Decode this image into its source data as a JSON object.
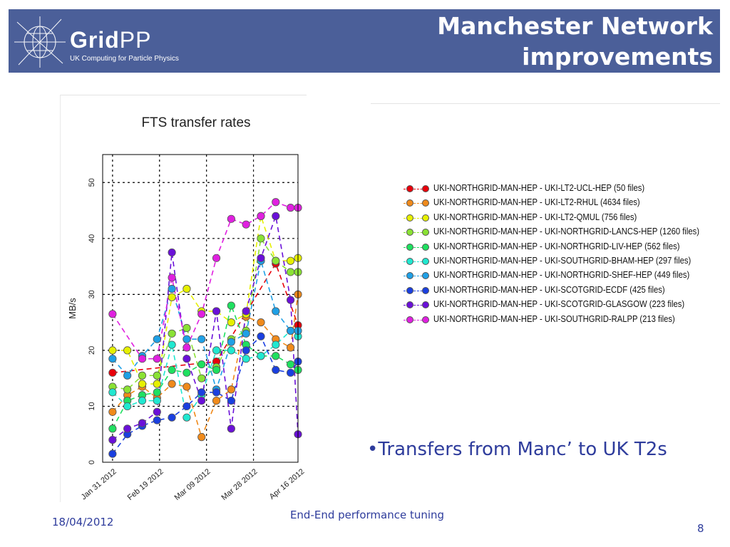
{
  "header": {
    "title_line1": "Manchester Network",
    "title_line2": "improvements",
    "logo": {
      "name": "GridPP",
      "name_grid": "Grid",
      "name_pp": "PP",
      "tagline": "UK Computing for Particle Physics"
    }
  },
  "colors": {
    "header_bg": "#4b5f99",
    "body_text": "#2e3c9c"
  },
  "chart_data": {
    "type": "line",
    "title": "FTS transfer rates",
    "ylabel": "MB/s",
    "xlabel": "",
    "x_ticks": [
      "Jan 31 2012",
      "Feb 19 2012",
      "Mar 09 2012",
      "Mar 28 2012",
      "Apr 16 2012"
    ],
    "y_ticks": [
      "0",
      "10",
      "20",
      "30",
      "40",
      "50"
    ],
    "ylim": [
      0,
      55
    ],
    "x_range_days": [
      -4,
      75
    ],
    "grid": true,
    "line_style": "dashed",
    "series": [
      {
        "name": "UKI-NORTHGRID-MAN-HEP - UKI-LT2-UCL-HEP  (50 files)",
        "color": "#e8000b",
        "points": [
          [
            0,
            16
          ],
          [
            42,
            18
          ],
          [
            66,
            35.5
          ],
          [
            75,
            24.5
          ]
        ]
      },
      {
        "name": "UKI-NORTHGRID-MAN-HEP - UKI-LT2-RHUL  (4634 files)",
        "color": "#f08a1b",
        "points": [
          [
            0,
            9
          ],
          [
            6,
            12
          ],
          [
            12,
            13.5
          ],
          [
            18,
            11.5
          ],
          [
            24,
            14
          ],
          [
            30,
            13.5
          ],
          [
            36,
            4.5
          ],
          [
            42,
            11
          ],
          [
            48,
            13
          ],
          [
            54,
            26
          ],
          [
            60,
            25
          ],
          [
            66,
            22
          ],
          [
            72,
            20.5
          ],
          [
            75,
            30
          ]
        ]
      },
      {
        "name": "UKI-NORTHGRID-MAN-HEP - UKI-LT2-QMUL  (756 files)",
        "color": "#e6f000",
        "points": [
          [
            0,
            20
          ],
          [
            6,
            20
          ],
          [
            12,
            14
          ],
          [
            18,
            14
          ],
          [
            24,
            29.5
          ],
          [
            30,
            31
          ],
          [
            36,
            27
          ],
          [
            42,
            27
          ],
          [
            48,
            25
          ],
          [
            54,
            26.5
          ],
          [
            60,
            44
          ],
          [
            66,
            36
          ],
          [
            72,
            36
          ],
          [
            75,
            36.5
          ]
        ]
      },
      {
        "name": "UKI-NORTHGRID-MAN-HEP - UKI-NORTHGRID-LANCS-HEP  (1260 files)",
        "color": "#8ae234",
        "points": [
          [
            0,
            13.5
          ],
          [
            6,
            13
          ],
          [
            12,
            15.5
          ],
          [
            18,
            15.5
          ],
          [
            24,
            23
          ],
          [
            30,
            24
          ],
          [
            36,
            15
          ],
          [
            42,
            17
          ],
          [
            48,
            22
          ],
          [
            54,
            23.5
          ],
          [
            60,
            40
          ],
          [
            66,
            36
          ],
          [
            72,
            34
          ],
          [
            75,
            34
          ]
        ]
      },
      {
        "name": "UKI-NORTHGRID-MAN-HEP - UKI-NORTHGRID-LIV-HEP  (562 files)",
        "color": "#1fe060",
        "points": [
          [
            0,
            6
          ],
          [
            6,
            11
          ],
          [
            12,
            12
          ],
          [
            18,
            12.5
          ],
          [
            24,
            16.5
          ],
          [
            30,
            16
          ],
          [
            36,
            17.5
          ],
          [
            42,
            16.5
          ],
          [
            48,
            28
          ],
          [
            54,
            21
          ],
          [
            60,
            19
          ],
          [
            66,
            19
          ],
          [
            72,
            17.5
          ],
          [
            75,
            16.5
          ]
        ]
      },
      {
        "name": "UKI-NORTHGRID-MAN-HEP - UKI-SOUTHGRID-BHAM-HEP  (297 files)",
        "color": "#20e8d0",
        "points": [
          [
            0,
            12.5
          ],
          [
            6,
            10
          ],
          [
            12,
            11
          ],
          [
            18,
            11
          ],
          [
            24,
            21
          ],
          [
            30,
            8
          ],
          [
            36,
            12
          ],
          [
            42,
            20
          ],
          [
            48,
            20
          ],
          [
            54,
            18.5
          ],
          [
            60,
            19
          ],
          [
            66,
            21
          ],
          [
            72,
            23.5
          ],
          [
            75,
            22.5
          ]
        ]
      },
      {
        "name": "UKI-NORTHGRID-MAN-HEP - UKI-NORTHGRID-SHEF-HEP  (449 files)",
        "color": "#1fa0e6",
        "points": [
          [
            0,
            18.5
          ],
          [
            6,
            15.5
          ],
          [
            12,
            19
          ],
          [
            18,
            22
          ],
          [
            24,
            31
          ],
          [
            30,
            22
          ],
          [
            36,
            22
          ],
          [
            42,
            13
          ],
          [
            48,
            21.5
          ],
          [
            54,
            23
          ],
          [
            60,
            36
          ],
          [
            66,
            27
          ],
          [
            72,
            23.5
          ],
          [
            75,
            23.5
          ]
        ]
      },
      {
        "name": "UKI-NORTHGRID-MAN-HEP - UKI-SCOTGRID-ECDF  (425 files)",
        "color": "#1a3fe0",
        "points": [
          [
            0,
            1.5
          ],
          [
            6,
            5
          ],
          [
            12,
            6.5
          ],
          [
            18,
            7.5
          ],
          [
            24,
            8
          ],
          [
            30,
            10
          ],
          [
            36,
            12.5
          ],
          [
            42,
            12.5
          ],
          [
            48,
            11
          ],
          [
            54,
            20
          ],
          [
            60,
            22.5
          ],
          [
            66,
            16.5
          ],
          [
            72,
            16
          ],
          [
            75,
            18
          ]
        ]
      },
      {
        "name": "UKI-NORTHGRID-MAN-HEP - UKI-SCOTGRID-GLASGOW  (223 files)",
        "color": "#6a10d8",
        "points": [
          [
            0,
            4
          ],
          [
            6,
            6
          ],
          [
            12,
            7
          ],
          [
            18,
            9
          ],
          [
            24,
            37.5
          ],
          [
            30,
            18.5
          ],
          [
            36,
            11
          ],
          [
            42,
            27
          ],
          [
            48,
            6
          ],
          [
            54,
            27
          ],
          [
            60,
            36.5
          ],
          [
            66,
            44
          ],
          [
            72,
            29
          ],
          [
            75,
            5
          ]
        ]
      },
      {
        "name": "UKI-NORTHGRID-MAN-HEP - UKI-SOUTHGRID-RALPP  (213 files)",
        "color": "#e020e0",
        "points": [
          [
            0,
            26.5
          ],
          [
            12,
            18.5
          ],
          [
            18,
            18.5
          ],
          [
            24,
            33
          ],
          [
            30,
            20.5
          ],
          [
            36,
            26.5
          ],
          [
            42,
            36.5
          ],
          [
            48,
            43.5
          ],
          [
            54,
            42.5
          ],
          [
            60,
            44
          ],
          [
            66,
            46.5
          ],
          [
            72,
            45.5
          ],
          [
            75,
            45.5
          ]
        ]
      }
    ]
  },
  "bullet": "•Transfers from Manc’ to UK T2s",
  "footer": {
    "date": "18/04/2012",
    "center": "End-End performance tuning",
    "page": "8"
  }
}
